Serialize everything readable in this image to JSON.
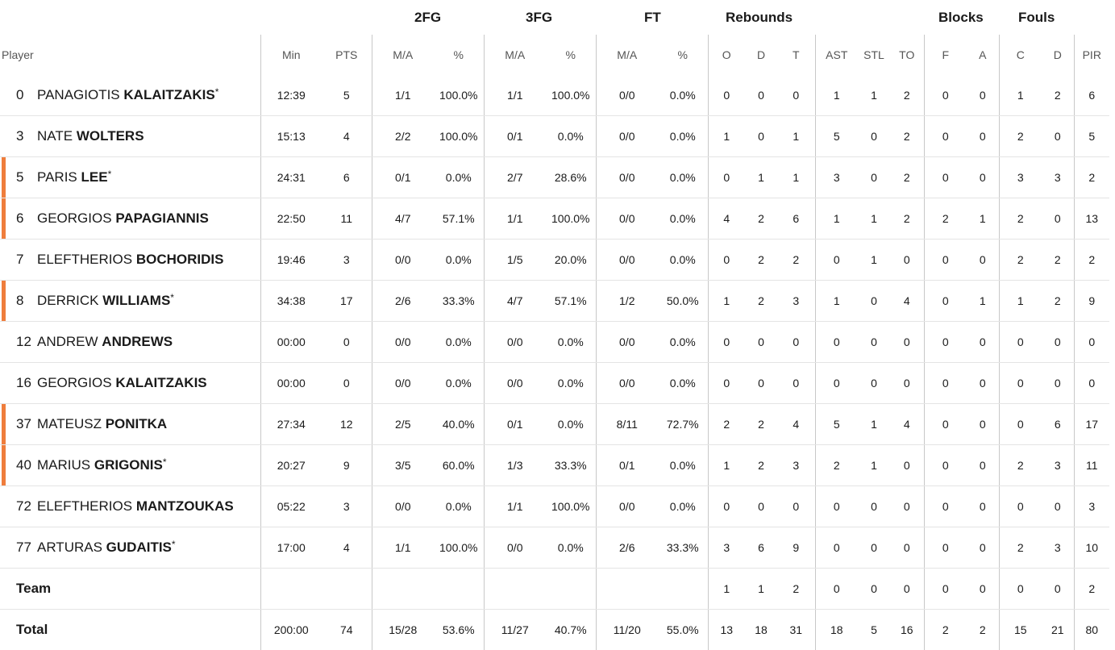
{
  "groups": {
    "fg2": "2FG",
    "fg3": "3FG",
    "ft": "FT",
    "rebounds": "Rebounds",
    "blocks": "Blocks",
    "fouls": "Fouls"
  },
  "columns": {
    "player": "Player",
    "min": "Min",
    "pts": "PTS",
    "fg2_ma": "M/A",
    "fg2_pct": "%",
    "fg3_ma": "M/A",
    "fg3_pct": "%",
    "ft_ma": "M/A",
    "ft_pct": "%",
    "reb_o": "O",
    "reb_d": "D",
    "reb_t": "T",
    "ast": "AST",
    "stl": "STL",
    "to": "TO",
    "blk_f": "F",
    "blk_a": "A",
    "foul_c": "C",
    "foul_d": "D",
    "pir": "PIR"
  },
  "accent_color": "#ef7d3c",
  "players": [
    {
      "num": "0",
      "first": "PANAGIOTIS",
      "last": "KALAITZAKIS",
      "starter": "*",
      "highlight": false,
      "min": "12:39",
      "pts": "5",
      "fg2_ma": "1/1",
      "fg2_pct": "100.0%",
      "fg3_ma": "1/1",
      "fg3_pct": "100.0%",
      "ft_ma": "0/0",
      "ft_pct": "0.0%",
      "reb_o": "0",
      "reb_d": "0",
      "reb_t": "0",
      "ast": "1",
      "stl": "1",
      "to": "2",
      "blk_f": "0",
      "blk_a": "0",
      "foul_c": "1",
      "foul_d": "2",
      "pir": "6"
    },
    {
      "num": "3",
      "first": "NATE",
      "last": "WOLTERS",
      "starter": "",
      "highlight": false,
      "min": "15:13",
      "pts": "4",
      "fg2_ma": "2/2",
      "fg2_pct": "100.0%",
      "fg3_ma": "0/1",
      "fg3_pct": "0.0%",
      "ft_ma": "0/0",
      "ft_pct": "0.0%",
      "reb_o": "1",
      "reb_d": "0",
      "reb_t": "1",
      "ast": "5",
      "stl": "0",
      "to": "2",
      "blk_f": "0",
      "blk_a": "0",
      "foul_c": "2",
      "foul_d": "0",
      "pir": "5"
    },
    {
      "num": "5",
      "first": "PARIS",
      "last": "LEE",
      "starter": "*",
      "highlight": true,
      "min": "24:31",
      "pts": "6",
      "fg2_ma": "0/1",
      "fg2_pct": "0.0%",
      "fg3_ma": "2/7",
      "fg3_pct": "28.6%",
      "ft_ma": "0/0",
      "ft_pct": "0.0%",
      "reb_o": "0",
      "reb_d": "1",
      "reb_t": "1",
      "ast": "3",
      "stl": "0",
      "to": "2",
      "blk_f": "0",
      "blk_a": "0",
      "foul_c": "3",
      "foul_d": "3",
      "pir": "2"
    },
    {
      "num": "6",
      "first": "GEORGIOS",
      "last": "PAPAGIANNIS",
      "starter": "",
      "highlight": true,
      "min": "22:50",
      "pts": "11",
      "fg2_ma": "4/7",
      "fg2_pct": "57.1%",
      "fg3_ma": "1/1",
      "fg3_pct": "100.0%",
      "ft_ma": "0/0",
      "ft_pct": "0.0%",
      "reb_o": "4",
      "reb_d": "2",
      "reb_t": "6",
      "ast": "1",
      "stl": "1",
      "to": "2",
      "blk_f": "2",
      "blk_a": "1",
      "foul_c": "2",
      "foul_d": "0",
      "pir": "13"
    },
    {
      "num": "7",
      "first": "ELEFTHERIOS",
      "last": "BOCHORIDIS",
      "starter": "",
      "highlight": false,
      "min": "19:46",
      "pts": "3",
      "fg2_ma": "0/0",
      "fg2_pct": "0.0%",
      "fg3_ma": "1/5",
      "fg3_pct": "20.0%",
      "ft_ma": "0/0",
      "ft_pct": "0.0%",
      "reb_o": "0",
      "reb_d": "2",
      "reb_t": "2",
      "ast": "0",
      "stl": "1",
      "to": "0",
      "blk_f": "0",
      "blk_a": "0",
      "foul_c": "2",
      "foul_d": "2",
      "pir": "2"
    },
    {
      "num": "8",
      "first": "DERRICK",
      "last": "WILLIAMS",
      "starter": "*",
      "highlight": true,
      "min": "34:38",
      "pts": "17",
      "fg2_ma": "2/6",
      "fg2_pct": "33.3%",
      "fg3_ma": "4/7",
      "fg3_pct": "57.1%",
      "ft_ma": "1/2",
      "ft_pct": "50.0%",
      "reb_o": "1",
      "reb_d": "2",
      "reb_t": "3",
      "ast": "1",
      "stl": "0",
      "to": "4",
      "blk_f": "0",
      "blk_a": "1",
      "foul_c": "1",
      "foul_d": "2",
      "pir": "9"
    },
    {
      "num": "12",
      "first": "ANDREW",
      "last": "ANDREWS",
      "starter": "",
      "highlight": false,
      "min": "00:00",
      "pts": "0",
      "fg2_ma": "0/0",
      "fg2_pct": "0.0%",
      "fg3_ma": "0/0",
      "fg3_pct": "0.0%",
      "ft_ma": "0/0",
      "ft_pct": "0.0%",
      "reb_o": "0",
      "reb_d": "0",
      "reb_t": "0",
      "ast": "0",
      "stl": "0",
      "to": "0",
      "blk_f": "0",
      "blk_a": "0",
      "foul_c": "0",
      "foul_d": "0",
      "pir": "0"
    },
    {
      "num": "16",
      "first": "GEORGIOS",
      "last": "KALAITZAKIS",
      "starter": "",
      "highlight": false,
      "min": "00:00",
      "pts": "0",
      "fg2_ma": "0/0",
      "fg2_pct": "0.0%",
      "fg3_ma": "0/0",
      "fg3_pct": "0.0%",
      "ft_ma": "0/0",
      "ft_pct": "0.0%",
      "reb_o": "0",
      "reb_d": "0",
      "reb_t": "0",
      "ast": "0",
      "stl": "0",
      "to": "0",
      "blk_f": "0",
      "blk_a": "0",
      "foul_c": "0",
      "foul_d": "0",
      "pir": "0"
    },
    {
      "num": "37",
      "first": "MATEUSZ",
      "last": "PONITKA",
      "starter": "",
      "highlight": true,
      "min": "27:34",
      "pts": "12",
      "fg2_ma": "2/5",
      "fg2_pct": "40.0%",
      "fg3_ma": "0/1",
      "fg3_pct": "0.0%",
      "ft_ma": "8/11",
      "ft_pct": "72.7%",
      "reb_o": "2",
      "reb_d": "2",
      "reb_t": "4",
      "ast": "5",
      "stl": "1",
      "to": "4",
      "blk_f": "0",
      "blk_a": "0",
      "foul_c": "0",
      "foul_d": "6",
      "pir": "17"
    },
    {
      "num": "40",
      "first": "MARIUS",
      "last": "GRIGONIS",
      "starter": "*",
      "highlight": true,
      "min": "20:27",
      "pts": "9",
      "fg2_ma": "3/5",
      "fg2_pct": "60.0%",
      "fg3_ma": "1/3",
      "fg3_pct": "33.3%",
      "ft_ma": "0/1",
      "ft_pct": "0.0%",
      "reb_o": "1",
      "reb_d": "2",
      "reb_t": "3",
      "ast": "2",
      "stl": "1",
      "to": "0",
      "blk_f": "0",
      "blk_a": "0",
      "foul_c": "2",
      "foul_d": "3",
      "pir": "11"
    },
    {
      "num": "72",
      "first": "ELEFTHERIOS",
      "last": "MANTZOUKAS",
      "starter": "",
      "highlight": false,
      "min": "05:22",
      "pts": "3",
      "fg2_ma": "0/0",
      "fg2_pct": "0.0%",
      "fg3_ma": "1/1",
      "fg3_pct": "100.0%",
      "ft_ma": "0/0",
      "ft_pct": "0.0%",
      "reb_o": "0",
      "reb_d": "0",
      "reb_t": "0",
      "ast": "0",
      "stl": "0",
      "to": "0",
      "blk_f": "0",
      "blk_a": "0",
      "foul_c": "0",
      "foul_d": "0",
      "pir": "3"
    },
    {
      "num": "77",
      "first": "ARTURAS",
      "last": "GUDAITIS",
      "starter": "*",
      "highlight": false,
      "min": "17:00",
      "pts": "4",
      "fg2_ma": "1/1",
      "fg2_pct": "100.0%",
      "fg3_ma": "0/0",
      "fg3_pct": "0.0%",
      "ft_ma": "2/6",
      "ft_pct": "33.3%",
      "reb_o": "3",
      "reb_d": "6",
      "reb_t": "9",
      "ast": "0",
      "stl": "0",
      "to": "0",
      "blk_f": "0",
      "blk_a": "0",
      "foul_c": "2",
      "foul_d": "3",
      "pir": "10"
    }
  ],
  "team": {
    "label": "Team",
    "min": "",
    "pts": "",
    "fg2_ma": "",
    "fg2_pct": "",
    "fg3_ma": "",
    "fg3_pct": "",
    "ft_ma": "",
    "ft_pct": "",
    "reb_o": "1",
    "reb_d": "1",
    "reb_t": "2",
    "ast": "0",
    "stl": "0",
    "to": "0",
    "blk_f": "0",
    "blk_a": "0",
    "foul_c": "0",
    "foul_d": "0",
    "pir": "2"
  },
  "total": {
    "label": "Total",
    "min": "200:00",
    "pts": "74",
    "fg2_ma": "15/28",
    "fg2_pct": "53.6%",
    "fg3_ma": "11/27",
    "fg3_pct": "40.7%",
    "ft_ma": "11/20",
    "ft_pct": "55.0%",
    "reb_o": "13",
    "reb_d": "18",
    "reb_t": "31",
    "ast": "18",
    "stl": "5",
    "to": "16",
    "blk_f": "2",
    "blk_a": "2",
    "foul_c": "15",
    "foul_d": "21",
    "pir": "80"
  }
}
